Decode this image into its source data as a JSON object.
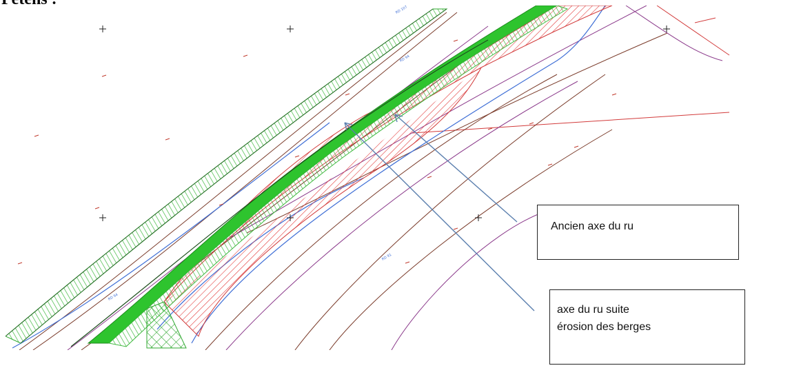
{
  "heading": "Petens :",
  "map": {
    "labels": {
      "road_top": "RD 107",
      "mid_road": "RD 94",
      "left_road": "RD 94",
      "right_field": "RD 91"
    }
  },
  "callouts": [
    {
      "id": "ancien-axe",
      "lines": [
        "Ancien axe du ru"
      ]
    },
    {
      "id": "axe-erosion",
      "lines": [
        "axe du ru suite",
        "érosion des berges"
      ]
    }
  ],
  "colors": {
    "old_stream_fill": "#e23b3b",
    "new_stream_fill": "#2ec42e",
    "hatch_green": "#5cd35c",
    "contour_brown": "#7a3b2a",
    "contour_purple": "#8b3a8b",
    "water_blue": "#3f6fd6",
    "arrow_blue": "#5b7fae",
    "red_line": "#d23a3a"
  }
}
